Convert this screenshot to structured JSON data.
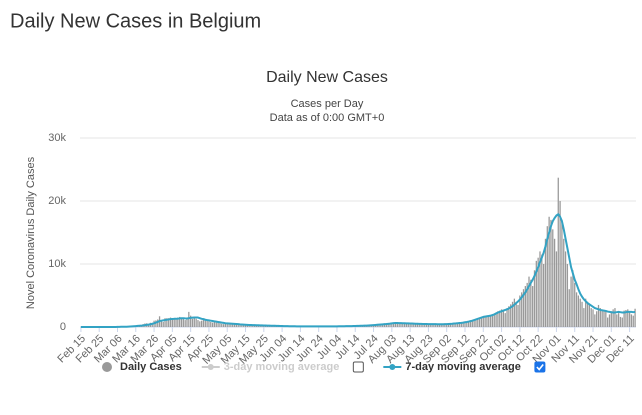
{
  "heading": "Daily New Cases in Belgium",
  "chart_data": {
    "type": "bar",
    "title": "Daily New Cases",
    "subtitle": [
      "Cases per Day",
      "Data as of 0:00 GMT+0"
    ],
    "ylabel": "Novel Coronavirus Daily Cases",
    "ylim": [
      0,
      30000
    ],
    "yticks": [
      0,
      {
        "value": 10000,
        "label": "10k"
      },
      {
        "value": 20000,
        "label": "20k"
      },
      {
        "value": 30000,
        "label": "30k"
      }
    ],
    "grid": true,
    "categories": [
      "Feb 15",
      null,
      null,
      null,
      null,
      null,
      null,
      null,
      null,
      null,
      "Feb 25",
      null,
      null,
      null,
      null,
      null,
      null,
      null,
      null,
      null,
      "Mar 06",
      null,
      null,
      null,
      null,
      null,
      null,
      null,
      null,
      null,
      "Mar 16",
      null,
      null,
      null,
      null,
      null,
      null,
      null,
      null,
      null,
      "Mar 26",
      null,
      null,
      null,
      null,
      null,
      null,
      null,
      null,
      null,
      "Apr 05",
      null,
      null,
      null,
      null,
      null,
      null,
      null,
      null,
      null,
      "Apr 15",
      null,
      null,
      null,
      null,
      null,
      null,
      null,
      null,
      null,
      "Apr 25",
      null,
      null,
      null,
      null,
      null,
      null,
      null,
      null,
      null,
      "May 05",
      null,
      null,
      null,
      null,
      null,
      null,
      null,
      null,
      null,
      "May 15",
      null,
      null,
      null,
      null,
      null,
      null,
      null,
      null,
      null,
      "May 25",
      null,
      null,
      null,
      null,
      null,
      null,
      null,
      null,
      null,
      "Jun 04",
      null,
      null,
      null,
      null,
      null,
      null,
      null,
      null,
      null,
      "Jun 14",
      null,
      null,
      null,
      null,
      null,
      null,
      null,
      null,
      null,
      "Jun 24",
      null,
      null,
      null,
      null,
      null,
      null,
      null,
      null,
      null,
      "Jul 04",
      null,
      null,
      null,
      null,
      null,
      null,
      null,
      null,
      null,
      "Jul 14",
      null,
      null,
      null,
      null,
      null,
      null,
      null,
      null,
      null,
      "Jul 24",
      null,
      null,
      null,
      null,
      null,
      null,
      null,
      null,
      null,
      "Aug 03",
      null,
      null,
      null,
      null,
      null,
      null,
      null,
      null,
      null,
      "Aug 13",
      null,
      null,
      null,
      null,
      null,
      null,
      null,
      null,
      null,
      "Aug 23",
      null,
      null,
      null,
      null,
      null,
      null,
      null,
      null,
      null,
      "Sep 02",
      null,
      null,
      null,
      null,
      null,
      null,
      null,
      null,
      null,
      "Sep 12",
      null,
      null,
      null,
      null,
      null,
      null,
      null,
      null,
      null,
      "Sep 22",
      null,
      null,
      null,
      null,
      null,
      null,
      null,
      null,
      null,
      "Oct 02",
      null,
      null,
      null,
      null,
      null,
      null,
      null,
      null,
      null,
      "Oct 12",
      null,
      null,
      null,
      null,
      null,
      null,
      null,
      null,
      null,
      "Oct 22",
      null,
      null,
      null,
      null,
      null,
      null,
      null,
      null,
      null,
      "Nov 01",
      null,
      null,
      null,
      null,
      null,
      null,
      null,
      null,
      null,
      "Nov 11",
      null,
      null,
      null,
      null,
      null,
      null,
      null,
      null,
      null,
      "Nov 21",
      null,
      null,
      null,
      null,
      null,
      null,
      null,
      null,
      null,
      "Dec 01",
      null,
      null,
      null,
      null,
      null,
      null,
      null,
      null,
      null,
      "Dec 11",
      null,
      null,
      null
    ],
    "series": [
      {
        "name": "Daily Cases",
        "kind": "bar",
        "color": "#999999",
        "values": [
          0,
          0,
          0,
          0,
          0,
          0,
          0,
          0,
          0,
          0,
          0,
          0,
          0,
          0,
          0,
          0,
          0,
          2,
          5,
          50,
          60,
          60,
          30,
          40,
          40,
          80,
          100,
          200,
          170,
          200,
          180,
          200,
          240,
          300,
          460,
          560,
          590,
          340,
          670,
          670,
          1000,
          1050,
          1200,
          1700,
          900,
          800,
          1400,
          1400,
          1400,
          1500,
          1300,
          1200,
          1400,
          1500,
          1600,
          1500,
          1300,
          1100,
          1200,
          2400,
          1800,
          1300,
          1500,
          1300,
          1100,
          900,
          1000,
          1200,
          1200,
          1000,
          900,
          800,
          700,
          800,
          700,
          700,
          600,
          500,
          450,
          500,
          600,
          550,
          500,
          450,
          400,
          400,
          350,
          400,
          350,
          350,
          300,
          300,
          250,
          300,
          300,
          250,
          250,
          250,
          250,
          200,
          200,
          250,
          200,
          200,
          200,
          180,
          150,
          150,
          150,
          130,
          130,
          120,
          120,
          110,
          100,
          110,
          100,
          100,
          100,
          90,
          90,
          90,
          90,
          90,
          90,
          90,
          90,
          90,
          90,
          90,
          90,
          90,
          90,
          90,
          100,
          100,
          100,
          100,
          100,
          110,
          110,
          120,
          120,
          130,
          130,
          140,
          140,
          150,
          150,
          160,
          170,
          180,
          190,
          200,
          210,
          220,
          230,
          250,
          270,
          300,
          320,
          350,
          370,
          400,
          430,
          450,
          480,
          500,
          520,
          550,
          600,
          650,
          650,
          630,
          620,
          600,
          600,
          580,
          580,
          560,
          560,
          540,
          520,
          520,
          500,
          500,
          480,
          480,
          470,
          470,
          460,
          460,
          450,
          450,
          450,
          440,
          440,
          440,
          450,
          460,
          480,
          500,
          520,
          550,
          580,
          600,
          620,
          650,
          700,
          750,
          800,
          850,
          900,
          1000,
          1100,
          1200,
          1300,
          1400,
          1500,
          1600,
          1700,
          1800,
          1700,
          1800,
          1900,
          2000,
          2100,
          2300,
          2500,
          2600,
          2800,
          2500,
          2200,
          3000,
          3300,
          3600,
          4000,
          4500,
          4000,
          3500,
          5000,
          5500,
          6000,
          6500,
          7000,
          8000,
          7500,
          6500,
          9000,
          10500,
          11000,
          12000,
          11500,
          10000,
          14000,
          16000,
          17500,
          17000,
          15500,
          14000,
          12000,
          23700,
          20000,
          17000,
          14000,
          12000,
          10000,
          6000,
          8000,
          9000,
          7000,
          5500,
          5000,
          4500,
          4000,
          3000,
          4500,
          4000,
          3500,
          3000,
          2800,
          2000,
          2500,
          3500,
          3000,
          2800,
          2700,
          2500,
          1500,
          2000,
          2500,
          2800,
          3000,
          2000,
          2200,
          1600,
          1500,
          2600,
          2700,
          2800,
          2400,
          2000,
          1800,
          2900
        ]
      },
      {
        "name": "3-day moving average",
        "kind": "line",
        "color": "#cccccc",
        "visible": false,
        "checked": false
      },
      {
        "name": "7-day moving average",
        "kind": "line",
        "color": "#33a3c4",
        "visible": true,
        "checked": true,
        "values": [
          0,
          0,
          0,
          0,
          0,
          0,
          0,
          0,
          0,
          0,
          0,
          0,
          0,
          0,
          0,
          0,
          0,
          1,
          2,
          8,
          17,
          25,
          30,
          35,
          40,
          45,
          55,
          70,
          90,
          115,
          140,
          170,
          190,
          210,
          250,
          290,
          340,
          380,
          440,
          500,
          590,
          700,
          800,
          950,
          1000,
          1050,
          1100,
          1150,
          1200,
          1250,
          1280,
          1300,
          1300,
          1320,
          1360,
          1380,
          1380,
          1360,
          1350,
          1400,
          1450,
          1480,
          1500,
          1500,
          1500,
          1400,
          1300,
          1250,
          1150,
          1100,
          1050,
          1000,
          950,
          900,
          850,
          800,
          750,
          700,
          650,
          600,
          580,
          560,
          540,
          520,
          500,
          480,
          450,
          420,
          400,
          380,
          360,
          340,
          320,
          310,
          300,
          290,
          280,
          270,
          260,
          250,
          240,
          230,
          220,
          210,
          205,
          200,
          190,
          180,
          170,
          160,
          150,
          140,
          135,
          130,
          125,
          120,
          115,
          110,
          105,
          100,
          100,
          95,
          95,
          95,
          90,
          90,
          90,
          90,
          90,
          90,
          90,
          90,
          90,
          90,
          95,
          95,
          95,
          95,
          100,
          100,
          105,
          110,
          115,
          120,
          125,
          130,
          135,
          140,
          145,
          150,
          160,
          170,
          180,
          190,
          200,
          210,
          220,
          235,
          255,
          280,
          300,
          325,
          350,
          375,
          400,
          425,
          450,
          470,
          500,
          530,
          570,
          610,
          630,
          630,
          620,
          610,
          600,
          590,
          580,
          570,
          560,
          550,
          535,
          525,
          515,
          505,
          495,
          485,
          475,
          470,
          465,
          460,
          455,
          450,
          450,
          445,
          445,
          440,
          445,
          450,
          460,
          480,
          500,
          520,
          550,
          570,
          600,
          630,
          660,
          700,
          750,
          800,
          860,
          930,
          1000,
          1100,
          1200,
          1300,
          1400,
          1500,
          1600,
          1650,
          1700,
          1750,
          1800,
          1900,
          2000,
          2150,
          2300,
          2400,
          2500,
          2600,
          2700,
          2800,
          2950,
          3100,
          3300,
          3550,
          3800,
          4050,
          4350,
          4700,
          5100,
          5500,
          6000,
          6500,
          7000,
          7500,
          8100,
          8800,
          9500,
          10300,
          11000,
          11800,
          12800,
          14000,
          15000,
          16000,
          16800,
          17300,
          17700,
          17900,
          17500,
          16800,
          15500,
          14000,
          12500,
          11000,
          9500,
          8500,
          7500,
          6800,
          6000,
          5300,
          4800,
          4400,
          4100,
          3800,
          3600,
          3400,
          3200,
          3000,
          2900,
          2800,
          2700,
          2650,
          2600,
          2550,
          2450,
          2400,
          2350,
          2300,
          2300,
          2350,
          2400,
          2350,
          2300,
          2300,
          2350,
          2400,
          2400,
          2400,
          2350,
          2400
        ]
      }
    ]
  }
}
